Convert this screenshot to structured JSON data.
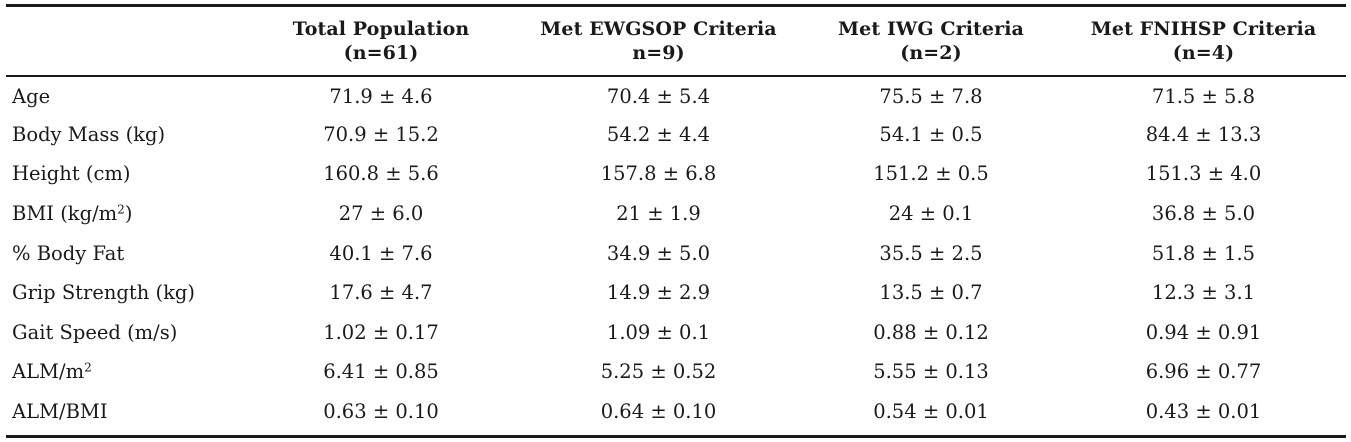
{
  "table": {
    "headers": [
      {
        "line1": "",
        "line2": ""
      },
      {
        "line1": "Total Population",
        "line2": "(n=61)"
      },
      {
        "line1": "Met EWGSOP Criteria",
        "line2": "n=9)"
      },
      {
        "line1": "Met IWG Criteria",
        "line2": "(n=2)"
      },
      {
        "line1": "Met FNIHSP Criteria",
        "line2": "(n=4)"
      }
    ],
    "rows": [
      {
        "label": "Age",
        "label_sup": "",
        "values": [
          "71.9 ± 4.6",
          "70.4 ± 5.4",
          "75.5 ± 7.8",
          "71.5 ± 5.8"
        ]
      },
      {
        "label": "Body Mass (kg)",
        "label_sup": "",
        "values": [
          "70.9 ± 15.2",
          "54.2 ± 4.4",
          "54.1 ± 0.5",
          "84.4 ± 13.3"
        ]
      },
      {
        "label": "Height (cm)",
        "label_sup": "",
        "values": [
          "160.8 ± 5.6",
          "157.8 ± 6.8",
          "151.2 ± 0.5",
          "151.3 ± 4.0"
        ]
      },
      {
        "label": "BMI (kg/m",
        "label_sup": "2",
        "label_after": ")",
        "values": [
          "27 ± 6.0",
          "21 ± 1.9",
          "24 ± 0.1",
          "36.8 ± 5.0"
        ]
      },
      {
        "label": "% Body Fat",
        "label_sup": "",
        "values": [
          "40.1 ± 7.6",
          "34.9 ± 5.0",
          "35.5 ± 2.5",
          "51.8 ± 1.5"
        ]
      },
      {
        "label": "Grip Strength (kg)",
        "label_sup": "",
        "values": [
          "17.6 ± 4.7",
          "14.9 ± 2.9",
          "13.5 ± 0.7",
          "12.3 ± 3.1"
        ]
      },
      {
        "label": "Gait Speed (m/s)",
        "label_sup": "",
        "values": [
          "1.02 ± 0.17",
          "1.09 ± 0.1",
          "0.88 ± 0.12",
          "0.94 ± 0.91"
        ]
      },
      {
        "label": "ALM/m",
        "label_sup": "2",
        "values": [
          "6.41 ± 0.85",
          "5.25 ± 0.52",
          "5.55 ± 0.13",
          "6.96 ± 0.77"
        ]
      },
      {
        "label": "ALM/BMI",
        "label_sup": "",
        "values": [
          "0.63 ± 0.10",
          "0.64 ± 0.10",
          "0.54 ± 0.01",
          "0.43 ± 0.01"
        ]
      }
    ]
  }
}
